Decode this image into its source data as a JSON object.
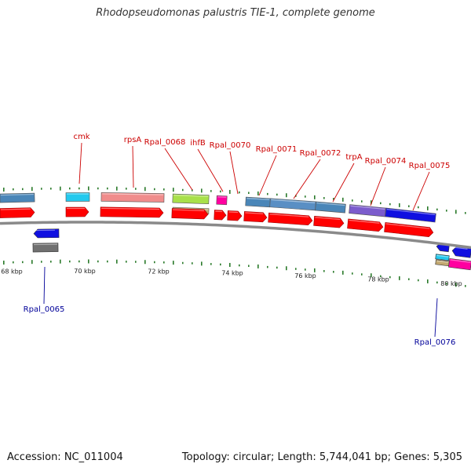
{
  "title": "Rhodopseudomonas palustris TIE-1, complete genome",
  "footer": {
    "accession": "Accession: NC_011004",
    "summary": "Topology: circular; Length: 5,744,041 bp; Genes: 5,305"
  },
  "axis_ticks": [
    "68 kbp",
    "70 kbp",
    "72 kbp",
    "74 kbp",
    "76 kbp",
    "78 kbp",
    "80 kbp"
  ],
  "colors": {
    "forward_label": "#cc0000",
    "reverse_label": "#000099",
    "backbone": "#8a8a8a",
    "cds": "#ff0000",
    "tick": "#2a7a2a"
  },
  "forward_labels": [
    "cmk",
    "rpsA",
    "Rpal_0068",
    "ihfB",
    "Rpal_0070",
    "Rpal_0071",
    "Rpal_0072",
    "trpA",
    "Rpal_0074",
    "Rpal_0075"
  ],
  "reverse_labels": [
    "Rpal_0065",
    "Rpal_0076"
  ]
}
